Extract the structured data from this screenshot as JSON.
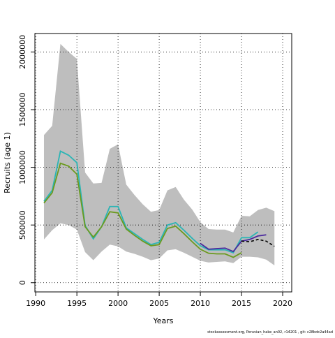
{
  "chart_data": {
    "type": "line",
    "x_label": "Years",
    "y_label": "Recruits (age 1)",
    "footer": "stockassessment.org, Peruvian_hake_an02, r14201 , git: c28bdc2a44ad",
    "xlim": [
      1989.9,
      2021.1
    ],
    "ylim": [
      -80000,
      2160000
    ],
    "xticks": [
      1990,
      1995,
      2000,
      2005,
      2010,
      2015,
      2020
    ],
    "yticks": [
      0,
      500000,
      1000000,
      1500000,
      2000000
    ],
    "grid": true,
    "band": {
      "color": "#bebebe",
      "x": [
        1991,
        1992,
        1993,
        1994,
        1995,
        1996,
        1997,
        1998,
        1999,
        2000,
        2001,
        2002,
        2003,
        2004,
        2005,
        2006,
        2007,
        2008,
        2009,
        2010,
        2011,
        2012,
        2013,
        2014,
        2015,
        2016,
        2017,
        2018,
        2019
      ],
      "lower": [
        375000,
        455000,
        515000,
        500000,
        460000,
        265000,
        195000,
        270000,
        330000,
        315000,
        270000,
        250000,
        225000,
        195000,
        210000,
        280000,
        290000,
        260000,
        225000,
        190000,
        175000,
        180000,
        185000,
        170000,
        225000,
        225000,
        220000,
        200000,
        150000
      ],
      "upper": [
        1280000,
        1360000,
        2070000,
        2000000,
        1940000,
        955000,
        860000,
        865000,
        1160000,
        1200000,
        850000,
        760000,
        680000,
        615000,
        630000,
        800000,
        830000,
        720000,
        635000,
        525000,
        465000,
        460000,
        460000,
        435000,
        580000,
        575000,
        630000,
        650000,
        620000
      ]
    },
    "series": [
      {
        "color": "#2ab5b5",
        "x": [
          1991,
          1992,
          1993,
          1994,
          1995,
          1996,
          1997,
          1998,
          1999,
          2000,
          2001,
          2002,
          2003,
          2004,
          2005,
          2006,
          2007,
          2008,
          2009,
          2010,
          2011,
          2012,
          2013,
          2014,
          2015,
          2016,
          2017
        ],
        "values": [
          705000,
          800000,
          1140000,
          1105000,
          1040000,
          495000,
          380000,
          485000,
          660000,
          660000,
          475000,
          425000,
          375000,
          330000,
          350000,
          500000,
          520000,
          455000,
          385000,
          320000,
          285000,
          285000,
          285000,
          260000,
          390000,
          390000,
          440000
        ]
      },
      {
        "color": "#4b2a9e",
        "x": [
          2010,
          2011,
          2012,
          2013,
          2014,
          2015,
          2016,
          2017,
          2018
        ],
        "values": [
          340000,
          290000,
          295000,
          300000,
          270000,
          360000,
          375000,
          405000,
          415000
        ]
      },
      {
        "color": "#6b9a1f",
        "x": [
          1991,
          1992,
          1993,
          1994,
          1995,
          1996,
          1997,
          1998,
          1999,
          2000,
          2001,
          2002,
          2003,
          2004,
          2005,
          2006,
          2007,
          2008,
          2009,
          2010,
          2011,
          2012,
          2013,
          2014,
          2015
        ],
        "values": [
          690000,
          780000,
          1035000,
          1010000,
          940000,
          485000,
          395000,
          485000,
          615000,
          605000,
          465000,
          410000,
          360000,
          320000,
          330000,
          470000,
          490000,
          425000,
          355000,
          290000,
          255000,
          250000,
          250000,
          220000,
          260000
        ]
      },
      {
        "color": "#000000",
        "dashed": true,
        "x": [
          2015,
          2016,
          2017,
          2018,
          2019
        ],
        "values": [
          360000,
          355000,
          375000,
          360000,
          315000
        ]
      }
    ]
  }
}
